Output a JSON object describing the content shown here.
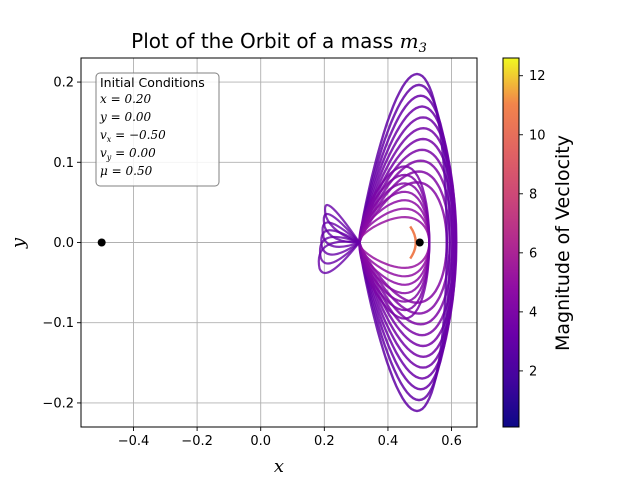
{
  "chart_data": {
    "type": "line",
    "title": "Plot of the Orbit of a mass",
    "title_math": "m",
    "title_math_sub": "3",
    "xlabel": "x",
    "ylabel": "y",
    "xlim": [
      -0.565,
      0.68
    ],
    "ylim": [
      -0.23,
      0.23
    ],
    "xticks": [
      -0.4,
      -0.2,
      0.0,
      0.2,
      0.4,
      0.6
    ],
    "xtick_labels": [
      "−0.4",
      "−0.2",
      "0.0",
      "0.2",
      "0.4",
      "0.6"
    ],
    "yticks": [
      -0.2,
      -0.1,
      0.0,
      0.1,
      0.2
    ],
    "ytick_labels": [
      "−0.2",
      "−0.1",
      "0.0",
      "0.1",
      "0.2"
    ],
    "grid": true,
    "colormap": "plasma",
    "colorbar": {
      "label": "Magnitude of Veclocity",
      "range": [
        0.1,
        12.6
      ],
      "ticks": [
        2,
        4,
        6,
        8,
        10,
        12
      ],
      "tick_labels": [
        "2",
        "4",
        "6",
        "8",
        "10",
        "12"
      ]
    },
    "masses": [
      {
        "x": -0.5,
        "y": 0.0
      },
      {
        "x": 0.5,
        "y": 0.0
      }
    ],
    "orbit": {
      "loop_family": {
        "right_extent_range": [
          0.585,
          0.615
        ],
        "vertical_extent": [
          0.075,
          0.21
        ],
        "curves": 11
      },
      "petal_family": {
        "left_tip_range": [
          0.185,
          0.205
        ],
        "tip_y_spread": 0.065
      },
      "crossing_point": {
        "x": 0.31,
        "y": 0.0
      }
    },
    "legend_box": {
      "title": "Initial Conditions",
      "lines": [
        {
          "lhs": "x",
          "rhs": "0.20"
        },
        {
          "lhs": "y",
          "rhs": "0.00"
        },
        {
          "lhs": "v",
          "sub": "x",
          "rhs": "−0.50"
        },
        {
          "lhs": "v",
          "sub": "y",
          "rhs": "0.00"
        },
        {
          "lhs": "μ",
          "rhs": "0.50"
        }
      ],
      "placement": "top-left"
    }
  }
}
